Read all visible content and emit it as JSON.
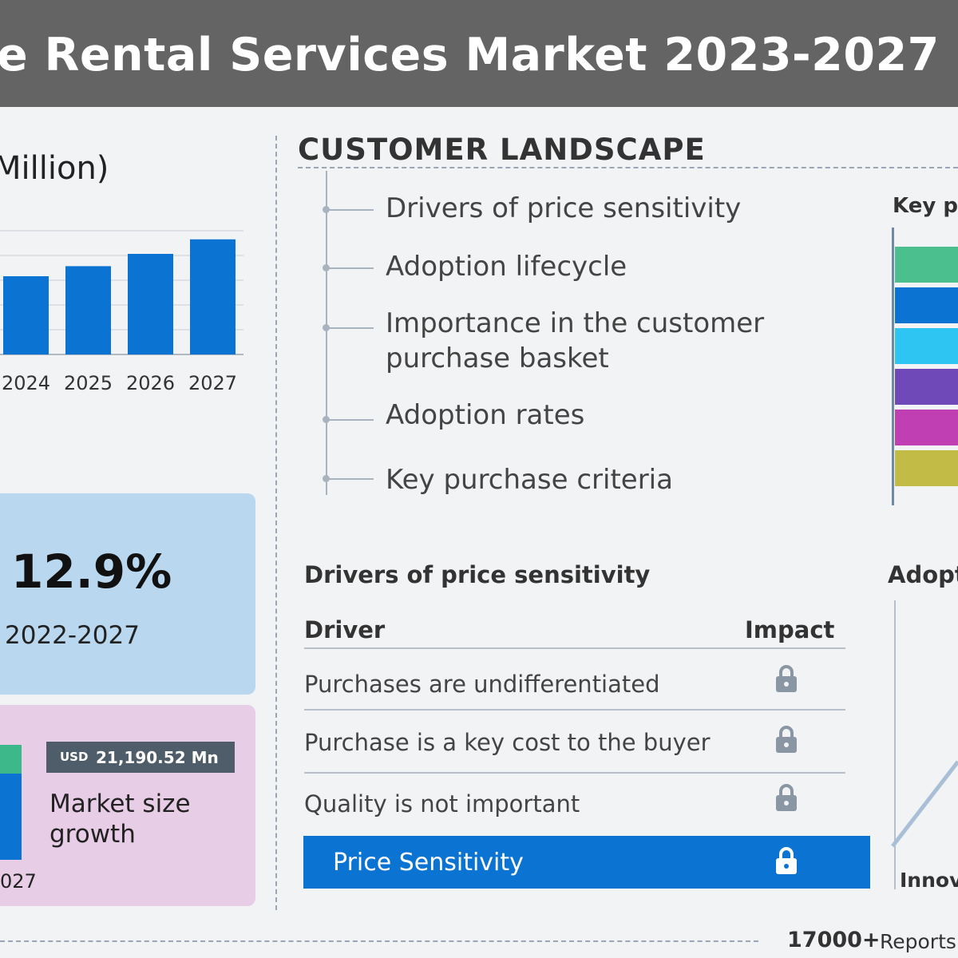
{
  "header": {
    "title": "e Rental Services Market 2023-2027"
  },
  "market_chart": {
    "unit_label": "Million)"
  },
  "chart_data": {
    "type": "bar",
    "categories": [
      "2024",
      "2025",
      "2026",
      "2027"
    ],
    "values": [
      7.0,
      7.9,
      9.0,
      10.3
    ],
    "color": "#0b74d2",
    "grid": true
  },
  "cagr": {
    "value": "12.9%",
    "period": "2022-2027"
  },
  "growth": {
    "currency": "USD",
    "amount": "21,190.52 Mn",
    "label": "Market size growth",
    "year": "027",
    "colors": {
      "top": "#3cb88a",
      "bottom": "#0b74d2"
    }
  },
  "customer_landscape": {
    "heading": "CUSTOMER LANDSCAPE",
    "items": [
      {
        "line1": "Drivers of price sensitivity",
        "line2": ""
      },
      {
        "line1": "Adoption lifecycle",
        "line2": ""
      },
      {
        "line1": "Importance in the customer",
        "line2": "purchase basket"
      },
      {
        "line1": "Adoption rates",
        "line2": ""
      },
      {
        "line1": "Key purchase criteria",
        "line2": ""
      }
    ]
  },
  "key_purchase": {
    "heading": "Key p",
    "bar_colors": [
      "#4cbf8e",
      "#0b74d2",
      "#2ec5f3",
      "#7049b8",
      "#c040b3",
      "#c2bb45"
    ]
  },
  "price_sensitivity": {
    "title": "Drivers of price sensitivity",
    "col_driver": "Driver",
    "col_impact": "Impact",
    "rows": [
      "Purchases are undifferentiated",
      "Purchase is a key cost to the buyer",
      "Quality is not important"
    ],
    "summary_label": "Price Sensitivity",
    "lock_icon": "lock-icon"
  },
  "adoption": {
    "heading": "Adopt",
    "axis_label": "Innova"
  },
  "footer": {
    "reports_count": "17000+",
    "reports_word": "Reports"
  }
}
